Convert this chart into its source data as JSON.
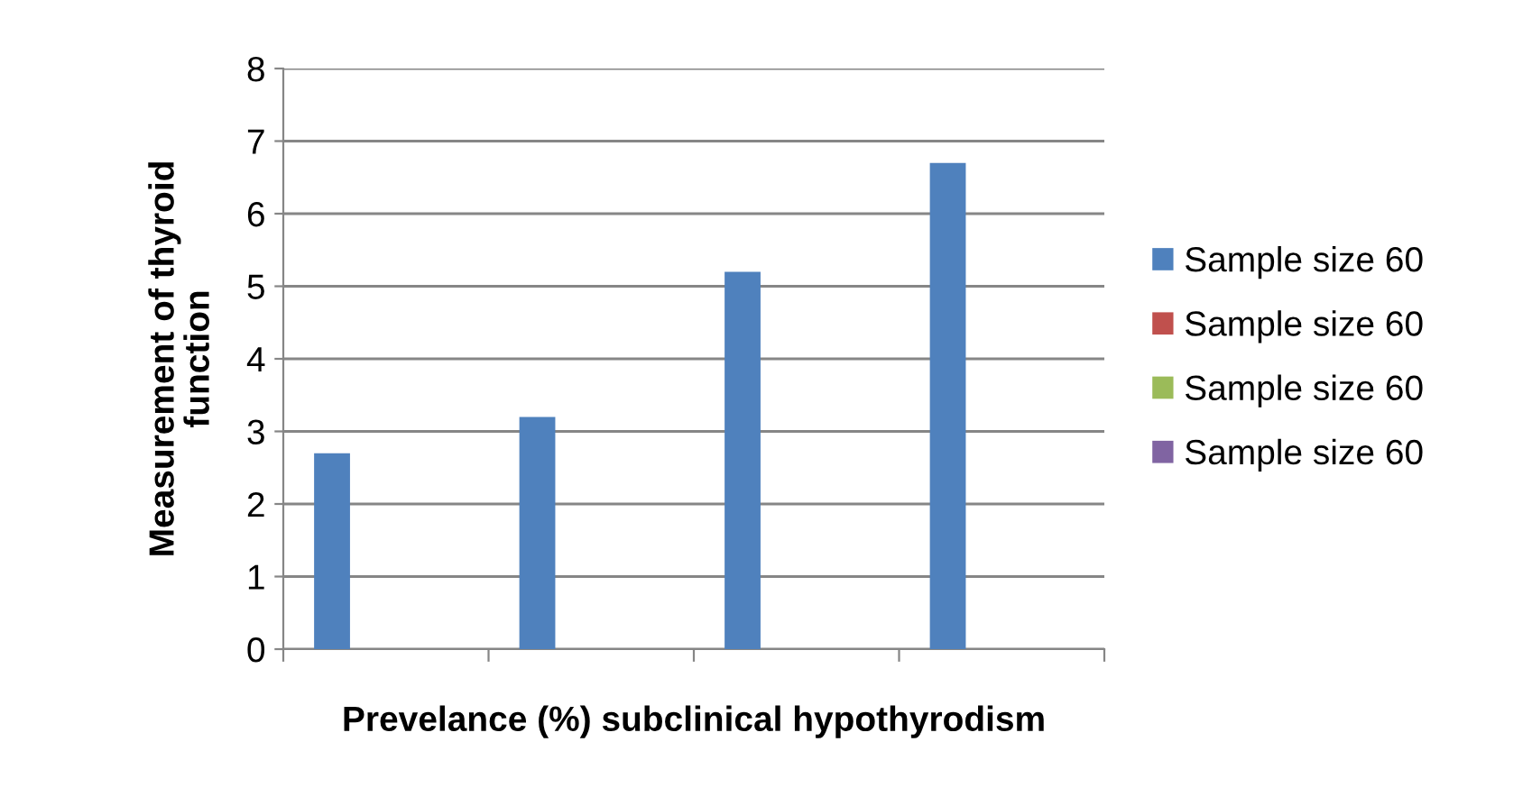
{
  "chart_data": {
    "type": "bar",
    "xlabel": "Prevelance (%) subclinical hypothyrodism",
    "ylabel": "Measurement of thyroid\nfunction",
    "categories": [
      null,
      null,
      null,
      null
    ],
    "series": [
      {
        "name": "Sample size 60",
        "color": "#4f81bd",
        "values": [
          2.7,
          3.2,
          5.2,
          6.7
        ]
      },
      {
        "name": "Sample size 60",
        "color": "#c0504d",
        "values": [
          null,
          null,
          null,
          null
        ]
      },
      {
        "name": "Sample size 60",
        "color": "#9bbb59",
        "values": [
          null,
          null,
          null,
          null
        ]
      },
      {
        "name": "Sample size 60",
        "color": "#8064a2",
        "values": [
          null,
          null,
          null,
          null
        ]
      }
    ],
    "ylim": [
      0,
      8
    ],
    "yticks": [
      0,
      1,
      2,
      3,
      4,
      5,
      6,
      7,
      8
    ],
    "grid": "y",
    "legend": "right"
  }
}
